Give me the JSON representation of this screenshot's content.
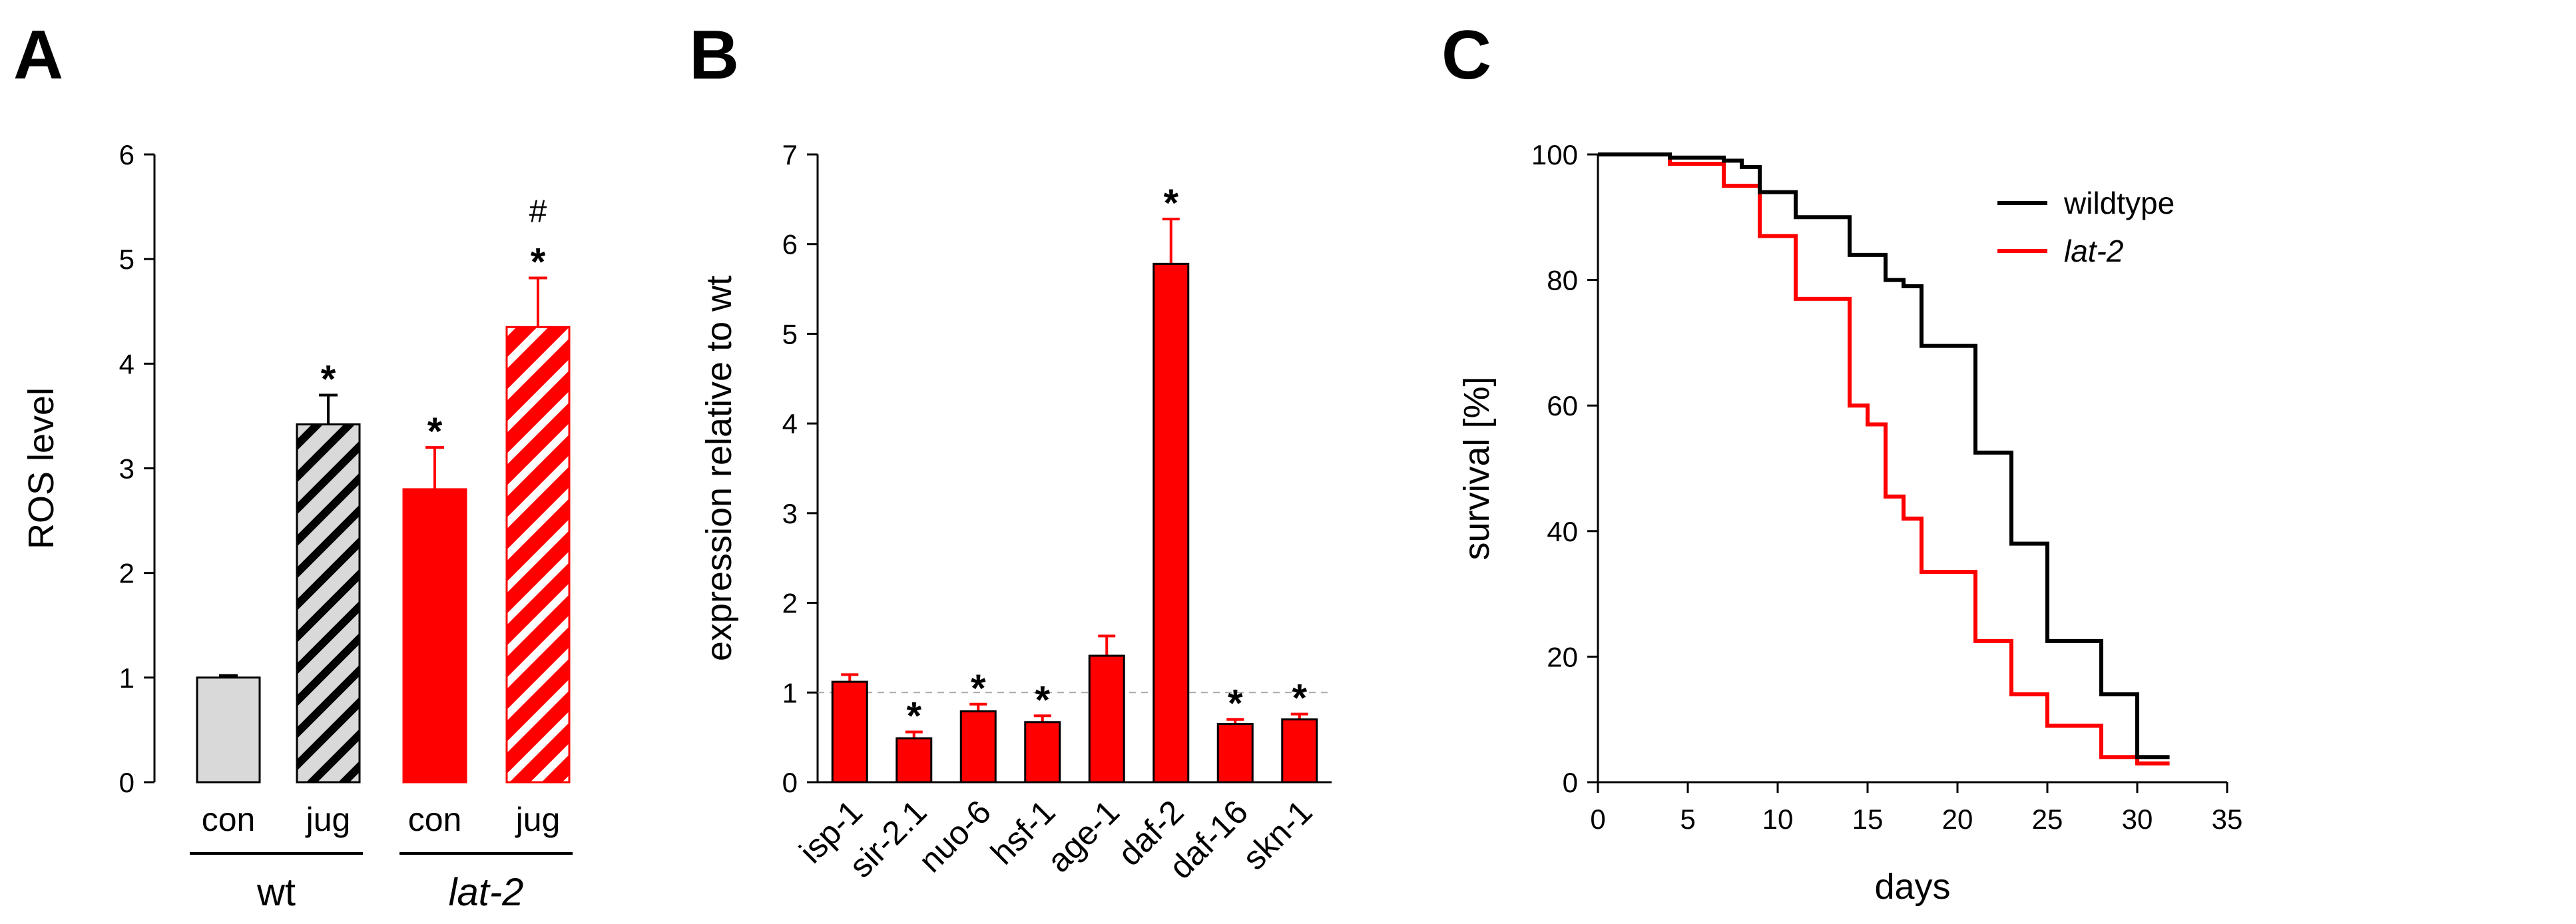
{
  "colors": {
    "red": "#ff0000",
    "grey": "#d9d9d9",
    "black": "#000000",
    "grid": "#aaaaaa"
  },
  "chart_data": [
    {
      "panel": "A",
      "type": "bar",
      "ylabel": "ROS level",
      "ylim": [
        0,
        6
      ],
      "yticks": [
        "0",
        "1",
        "2",
        "3",
        "4",
        "5",
        "6"
      ],
      "categories": [
        "con",
        "jug",
        "con",
        "jug"
      ],
      "groups": [
        {
          "label": "wt",
          "italic": false
        },
        {
          "label": "lat-2",
          "italic": true
        }
      ],
      "bars": [
        {
          "category": "con",
          "group": "wt",
          "value": 1.0,
          "error": 0.02,
          "fill": "grey",
          "hatch": false,
          "marks": []
        },
        {
          "category": "jug",
          "group": "wt",
          "value": 3.42,
          "error": 0.28,
          "fill": "grey",
          "hatch": true,
          "marks": [
            "*"
          ]
        },
        {
          "category": "con",
          "group": "lat-2",
          "value": 2.8,
          "error": 0.4,
          "fill": "red",
          "hatch": false,
          "marks": [
            "*"
          ]
        },
        {
          "category": "jug",
          "group": "lat-2",
          "value": 4.35,
          "error": 0.47,
          "fill": "red",
          "hatch": true,
          "marks": [
            "*",
            "#"
          ]
        }
      ]
    },
    {
      "panel": "B",
      "type": "bar",
      "ylabel": "expression relative to wt",
      "ylim": [
        0,
        7
      ],
      "yticks": [
        "0",
        "1",
        "2",
        "3",
        "4",
        "5",
        "6",
        "7"
      ],
      "reference_line": 1,
      "categories": [
        "isp-1",
        "sir-2.1",
        "nuo-6",
        "hsf-1",
        "age-1",
        "daf-2",
        "daf-16",
        "skn-1"
      ],
      "values": [
        1.12,
        0.49,
        0.79,
        0.67,
        1.41,
        5.78,
        0.65,
        0.7
      ],
      "errors": [
        0.08,
        0.07,
        0.08,
        0.07,
        0.22,
        0.5,
        0.05,
        0.06
      ],
      "significant": [
        false,
        true,
        true,
        true,
        false,
        true,
        true,
        true
      ],
      "mark": "*"
    },
    {
      "panel": "C",
      "type": "line",
      "step": true,
      "xlabel": "days",
      "ylabel": "survival [%]",
      "xlim": [
        0,
        35
      ],
      "ylim": [
        0,
        100
      ],
      "xticks": [
        "0",
        "5",
        "10",
        "15",
        "20",
        "25",
        "30",
        "35"
      ],
      "yticks": [
        "0",
        "20",
        "40",
        "60",
        "80",
        "100"
      ],
      "series": [
        {
          "name": "wildtype",
          "italic": false,
          "color": "black",
          "x": [
            0,
            4,
            7,
            8,
            9,
            11,
            14,
            16,
            17,
            18,
            21,
            23,
            25,
            28,
            30,
            31.8
          ],
          "y": [
            100,
            99.5,
            99,
            98,
            94,
            90,
            84,
            80,
            79,
            69.5,
            52.5,
            38,
            22.5,
            14,
            4,
            4
          ]
        },
        {
          "name": "lat-2",
          "italic": true,
          "color": "red",
          "x": [
            0,
            4,
            7,
            9,
            11,
            14,
            15,
            16,
            17,
            18,
            21,
            23,
            25,
            28,
            30,
            31.8
          ],
          "y": [
            100,
            98.5,
            95,
            87,
            77,
            60,
            57,
            45.5,
            42,
            33.5,
            22.5,
            14,
            9,
            4,
            3,
            3
          ]
        }
      ]
    }
  ]
}
